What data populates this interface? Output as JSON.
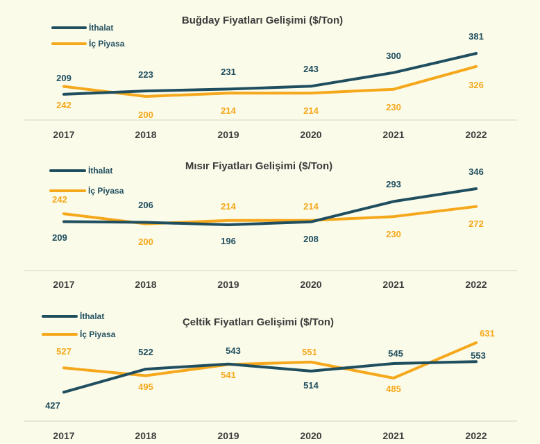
{
  "colors": {
    "ithalat": "#1F4E5F",
    "ic_piyasa": "#F5A81C",
    "background": "#FBFBE9",
    "axis": "#D6D6C4"
  },
  "chart_data": [
    {
      "type": "line",
      "title": "Buğday Fiyatları Gelişimi ($/Ton)",
      "categories": [
        "2017",
        "2018",
        "2019",
        "2020",
        "2021",
        "2022"
      ],
      "legend": "top-left",
      "grid": false,
      "series": [
        {
          "name": "İthalat",
          "values": [
            209,
            223,
            231,
            243,
            300,
            381
          ]
        },
        {
          "name": "İç Piyasa",
          "values": [
            242,
            200,
            214,
            214,
            230,
            326
          ]
        }
      ]
    },
    {
      "type": "line",
      "title": "Mısır Fiyatları Gelişimi ($/Ton)",
      "categories": [
        "2017",
        "2018",
        "2019",
        "2020",
        "2021",
        "2022"
      ],
      "legend": "top-left",
      "grid": false,
      "series": [
        {
          "name": "İthalat",
          "values": [
            209,
            206,
            196,
            208,
            293,
            346
          ]
        },
        {
          "name": "İç Piyasa",
          "values": [
            242,
            200,
            214,
            214,
            230,
            272
          ]
        }
      ]
    },
    {
      "type": "line",
      "title": "Çeltik Fiyatları Gelişimi ($/Ton)",
      "categories": [
        "2017",
        "2018",
        "2019",
        "2020",
        "2021",
        "2022"
      ],
      "legend": "top-left",
      "grid": false,
      "series": [
        {
          "name": "İthalat",
          "values": [
            427,
            522,
            543,
            514,
            545,
            553
          ]
        },
        {
          "name": "İç Piyasa",
          "values": [
            527,
            495,
            541,
            551,
            485,
            631
          ]
        }
      ]
    }
  ]
}
